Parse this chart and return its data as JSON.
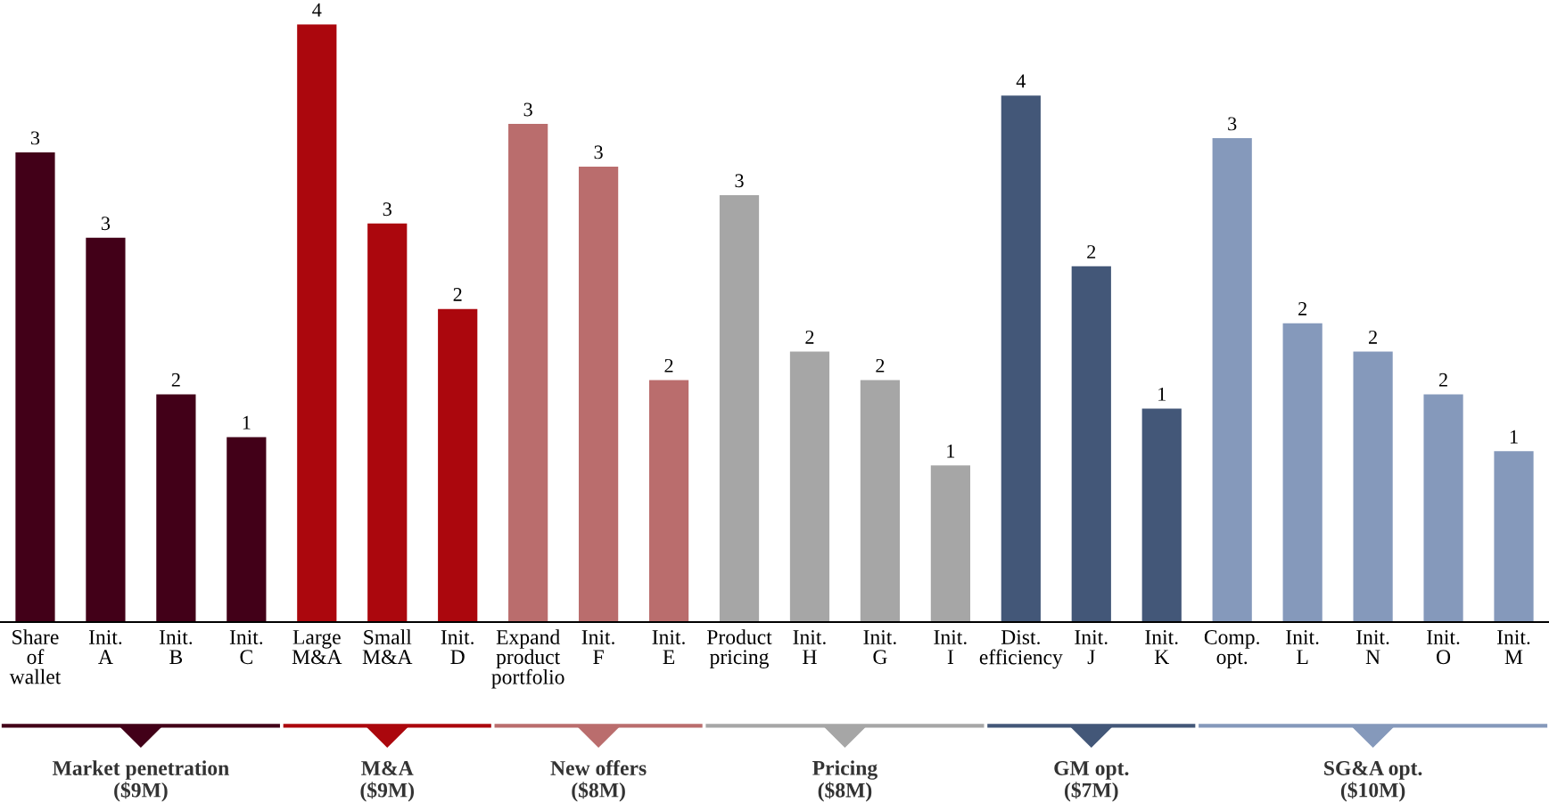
{
  "chart_data": {
    "type": "bar",
    "categories": [
      "Share\nof\nwallet",
      "Init.\nA",
      "Init.\nB",
      "Init.\nC",
      "Large\nM&A",
      "Small\nM&A",
      "Init.\nD",
      "Expand\nproduct\nportfolio",
      "Init.\nF",
      "Init.\nE",
      "Product\npricing",
      "Init.\nH",
      "Init.\nG",
      "Init.\nI",
      "Dist.\nefficiency",
      "Init.\nJ",
      "Init.\nK",
      "Comp.\nopt.",
      "Init.\nL",
      "Init.\nN",
      "Init.\nO",
      "Init.\nM"
    ],
    "values": [
      3.3,
      2.7,
      1.6,
      1.3,
      4.2,
      2.8,
      2.2,
      3.5,
      3.2,
      1.7,
      3.0,
      1.9,
      1.7,
      1.1,
      3.7,
      2.5,
      1.5,
      3.4,
      2.1,
      1.9,
      1.6,
      1.2
    ],
    "value_labels": [
      "3",
      "3",
      "2",
      "1",
      "4",
      "3",
      "2",
      "3",
      "3",
      "2",
      "3",
      "2",
      "2",
      "1",
      "4",
      "2",
      "1",
      "3",
      "2",
      "2",
      "2",
      "1"
    ],
    "colors": [
      "#420018",
      "#420018",
      "#420018",
      "#420018",
      "#ab070d",
      "#ab070d",
      "#ab070d",
      "#ba6d6d",
      "#ba6d6d",
      "#ba6d6d",
      "#a6a6a6",
      "#a6a6a6",
      "#a6a6a6",
      "#a6a6a6",
      "#435778",
      "#435778",
      "#435778",
      "#8599bb",
      "#8599bb",
      "#8599bb",
      "#8599bb",
      "#8599bb"
    ],
    "annotations": [
      "Market penetration\n($9M)",
      "M&A\n($9M)",
      "New offers\n($8M)",
      "Pricing\n($8M)",
      "GM opt.\n($7M)",
      "SG&A opt.\n($10M)"
    ],
    "grid": false,
    "legend": false
  }
}
